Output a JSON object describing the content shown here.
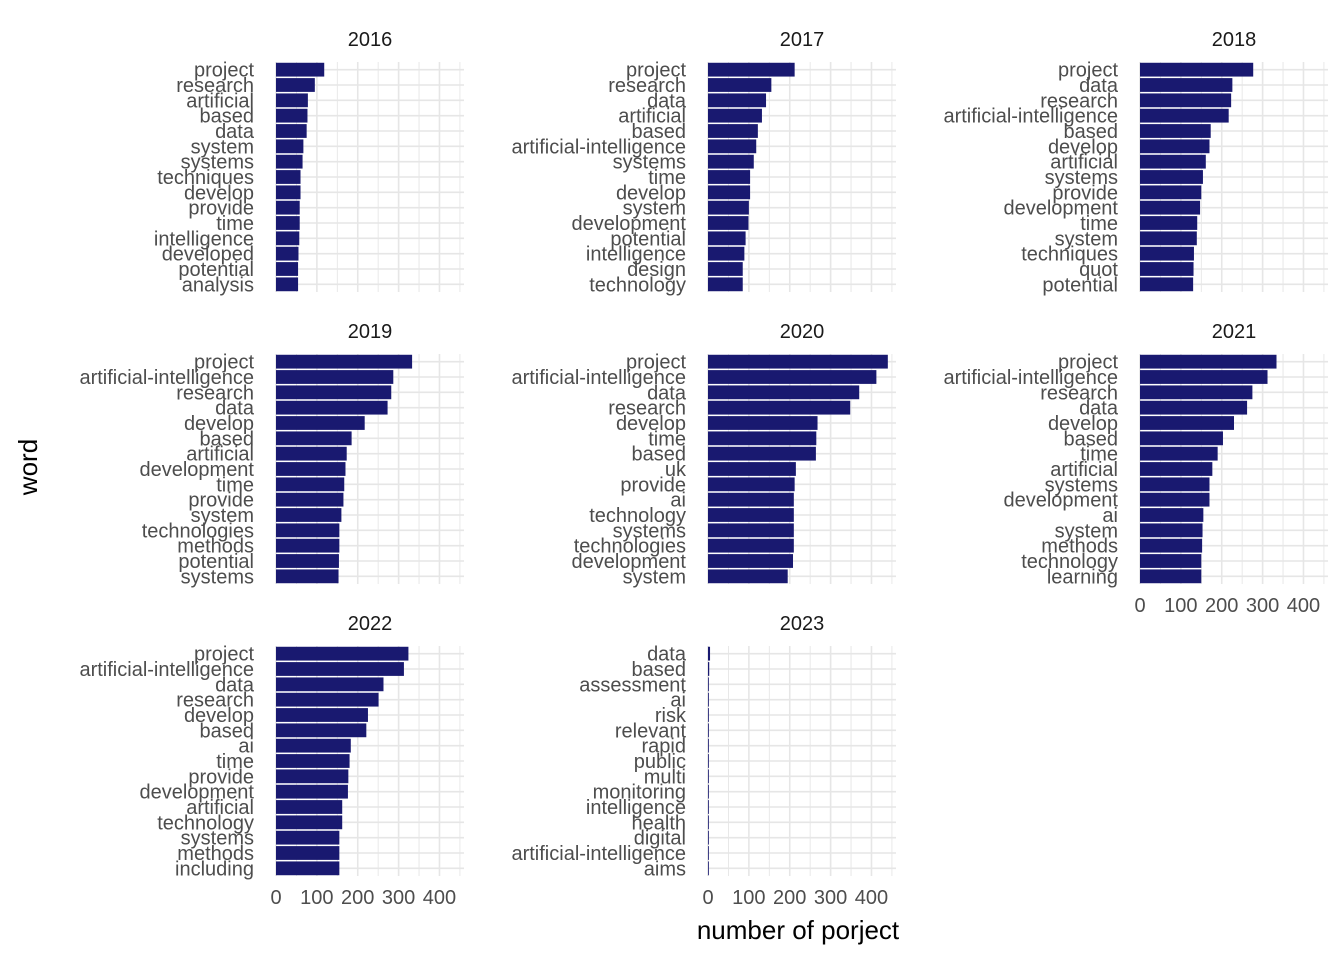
{
  "colors": {
    "bar": "#191970",
    "grid": "#e6e6e6",
    "text": "#4d4d4d",
    "title": "#1a1a1a",
    "background": "#ffffff"
  },
  "chart_data": {
    "type": "bar",
    "orientation": "horizontal",
    "facet_by": "year",
    "xlabel": "number of porject",
    "ylabel": "word",
    "xlim": [
      0,
      460
    ],
    "x_ticks": [
      0,
      100,
      200,
      300,
      400
    ],
    "grid": true,
    "legend": "none",
    "panels": [
      {
        "title": "2016",
        "categories": [
          "project",
          "research",
          "artificial",
          "based",
          "data",
          "system",
          "systems",
          "techniques",
          "develop",
          "provide",
          "time",
          "intelligence",
          "developed",
          "potential",
          "analysis"
        ],
        "values": [
          118,
          95,
          78,
          77,
          75,
          67,
          65,
          60,
          60,
          58,
          58,
          57,
          55,
          54,
          54
        ]
      },
      {
        "title": "2017",
        "categories": [
          "project",
          "research",
          "data",
          "artificial",
          "based",
          "artificial-intelligence",
          "systems",
          "time",
          "develop",
          "system",
          "development",
          "potential",
          "intelligence",
          "design",
          "technology"
        ],
        "values": [
          212,
          155,
          142,
          132,
          122,
          118,
          112,
          103,
          103,
          100,
          99,
          92,
          89,
          85,
          85
        ]
      },
      {
        "title": "2018",
        "categories": [
          "project",
          "data",
          "research",
          "artificial-intelligence",
          "based",
          "develop",
          "artificial",
          "systems",
          "provide",
          "development",
          "time",
          "system",
          "techniques",
          "quot",
          "potential"
        ],
        "values": [
          277,
          226,
          223,
          217,
          173,
          170,
          161,
          154,
          150,
          147,
          140,
          139,
          132,
          131,
          130
        ]
      },
      {
        "title": "2019",
        "categories": [
          "project",
          "artificial-intelligence",
          "research",
          "data",
          "develop",
          "based",
          "artificial",
          "development",
          "time",
          "provide",
          "system",
          "technologies",
          "methods",
          "potential",
          "systems"
        ],
        "values": [
          333,
          287,
          282,
          273,
          217,
          185,
          173,
          170,
          167,
          165,
          160,
          155,
          155,
          154,
          153
        ]
      },
      {
        "title": "2020",
        "categories": [
          "project",
          "artificial-intelligence",
          "data",
          "research",
          "develop",
          "time",
          "based",
          "uk",
          "provide",
          "ai",
          "technology",
          "systems",
          "technologies",
          "development",
          "system"
        ],
        "values": [
          440,
          412,
          370,
          348,
          268,
          265,
          264,
          215,
          212,
          210,
          210,
          210,
          210,
          208,
          195
        ]
      },
      {
        "title": "2021",
        "categories": [
          "project",
          "artificial-intelligence",
          "research",
          "data",
          "develop",
          "based",
          "time",
          "artificial",
          "systems",
          "development",
          "ai",
          "system",
          "methods",
          "technology",
          "learning"
        ],
        "values": [
          334,
          312,
          275,
          262,
          230,
          203,
          190,
          177,
          170,
          170,
          155,
          153,
          152,
          150,
          150
        ]
      },
      {
        "title": "2022",
        "categories": [
          "project",
          "artificial-intelligence",
          "data",
          "research",
          "develop",
          "based",
          "ai",
          "time",
          "provide",
          "development",
          "artificial",
          "technology",
          "systems",
          "methods",
          "including"
        ],
        "values": [
          324,
          313,
          263,
          251,
          225,
          221,
          183,
          180,
          177,
          176,
          162,
          162,
          155,
          155,
          155
        ]
      },
      {
        "title": "2023",
        "categories": [
          "data",
          "based",
          "assessment",
          "ai",
          "risk",
          "relevant",
          "rapid",
          "public",
          "multi",
          "monitoring",
          "intelligence",
          "health",
          "digital",
          "artificial-intelligence",
          "aims"
        ],
        "values": [
          5,
          3,
          2,
          2,
          2,
          2,
          2,
          2,
          2,
          2,
          2,
          2,
          2,
          2,
          2
        ]
      }
    ]
  }
}
